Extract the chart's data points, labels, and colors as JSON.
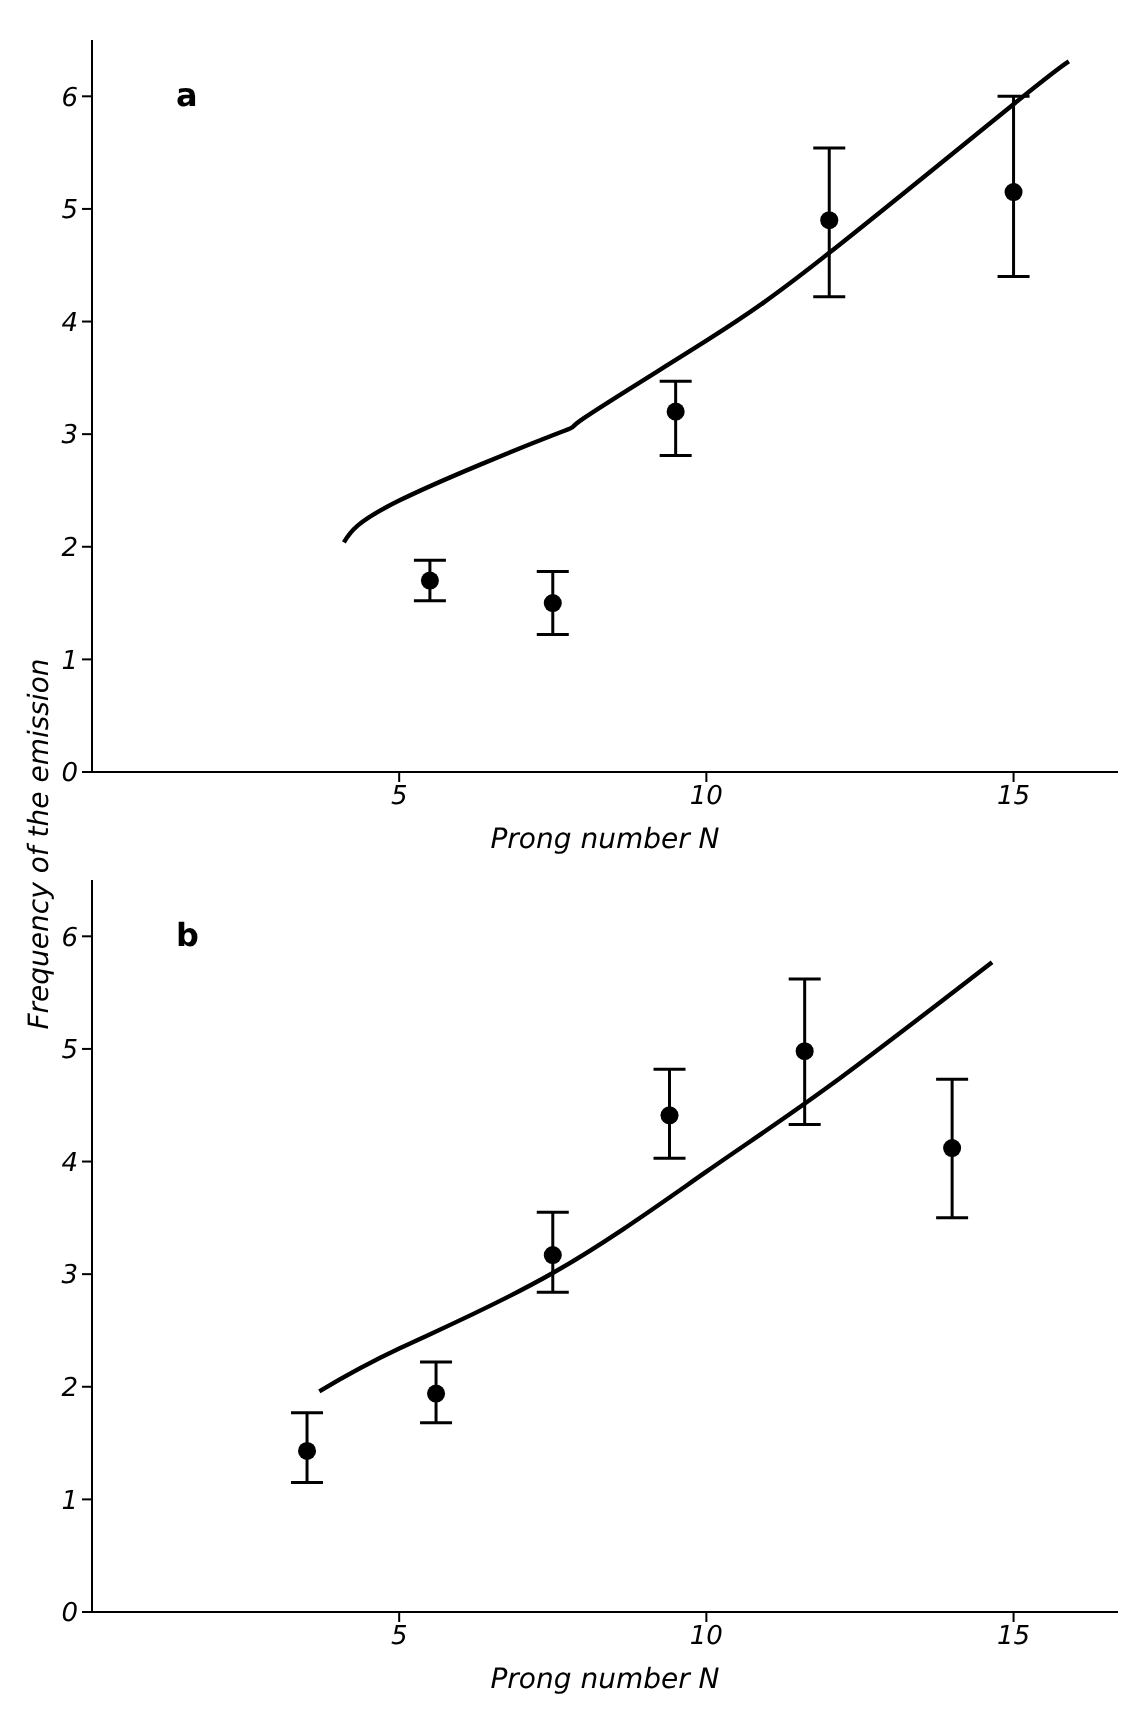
{
  "chart_data": [
    {
      "type": "scatter",
      "title": "a",
      "xlabel": "Prong number N",
      "ylabel": "Frequency of the emission",
      "xlim": [
        0,
        16.7
      ],
      "xticks": [
        5,
        10,
        15
      ],
      "ylim": [
        0,
        6.5
      ],
      "yticks": [
        0,
        1,
        2,
        3,
        4,
        5,
        6
      ],
      "series": [
        {
          "color": "#000000",
          "marker": "circle",
          "x": [
            5.5,
            7.5,
            9.5,
            12.0,
            15.0
          ],
          "values": [
            1.7,
            1.5,
            3.2,
            4.9,
            5.15
          ],
          "errors": [
            [
              1.52,
              1.88
            ],
            [
              1.22,
              1.78
            ],
            [
              2.81,
              3.47
            ],
            [
              4.22,
              5.54
            ],
            [
              4.4,
              6.0
            ]
          ]
        },
        {
          "type": "line",
          "color": "#000000",
          "marker": "none",
          "x": [
            4.1,
            5,
            7.5,
            8,
            10,
            12,
            15,
            15.9
          ],
          "values": [
            2.04,
            2.41,
            2.99,
            3.14,
            3.83,
            4.61,
            5.93,
            6.31
          ]
        }
      ]
    },
    {
      "type": "scatter",
      "title": "b",
      "xlabel": "Prong number N",
      "xlim": [
        0,
        16.7
      ],
      "xticks": [
        5,
        10,
        15
      ],
      "ylim": [
        0,
        6.5
      ],
      "yticks": [
        0,
        1,
        2,
        3,
        4,
        5,
        6
      ],
      "series": [
        {
          "color": "#000000",
          "marker": "circle",
          "x": [
            3.5,
            5.6,
            7.5,
            9.4,
            11.6,
            14.0
          ],
          "values": [
            1.43,
            1.94,
            3.17,
            4.41,
            4.98,
            4.12
          ],
          "errors": [
            [
              1.15,
              1.77
            ],
            [
              1.68,
              2.22
            ],
            [
              2.84,
              3.55
            ],
            [
              4.03,
              4.82
            ],
            [
              4.33,
              5.62
            ],
            [
              3.5,
              4.73
            ]
          ]
        },
        {
          "type": "line",
          "color": "#000000",
          "marker": "none",
          "x": [
            3.7,
            5,
            7.5,
            10,
            12,
            14.65
          ],
          "values": [
            1.96,
            2.34,
            3.01,
            3.91,
            4.67,
            5.77
          ]
        }
      ]
    }
  ]
}
